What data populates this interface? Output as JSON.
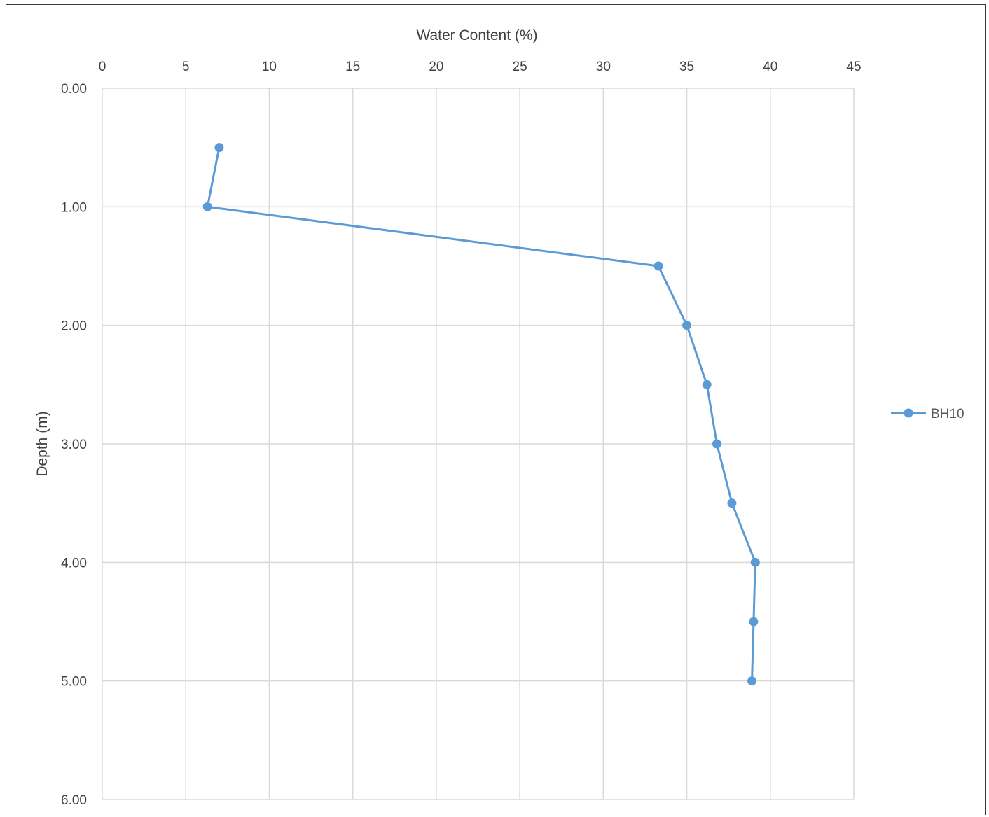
{
  "chart_data": {
    "type": "line",
    "title": "",
    "xlabel": "Water Content (%)",
    "ylabel": "Depth (m)",
    "x_axis_position": "top",
    "y_axis_inverted": true,
    "xlim": [
      0,
      45
    ],
    "ylim": [
      0,
      6
    ],
    "x_ticks": [
      "0",
      "5",
      "10",
      "15",
      "20",
      "25",
      "30",
      "35",
      "40",
      "45"
    ],
    "y_ticks": [
      "0.00",
      "1.00",
      "2.00",
      "3.00",
      "4.00",
      "5.00",
      "6.00"
    ],
    "grid": true,
    "legend_position": "right",
    "series": [
      {
        "name": "BH10",
        "color": "#5b9bd5",
        "marker": "circle",
        "points": [
          {
            "x": 7.0,
            "y": 0.5
          },
          {
            "x": 6.3,
            "y": 1.0
          },
          {
            "x": 33.3,
            "y": 1.5
          },
          {
            "x": 35.0,
            "y": 2.0
          },
          {
            "x": 36.2,
            "y": 2.5
          },
          {
            "x": 36.8,
            "y": 3.0
          },
          {
            "x": 37.7,
            "y": 3.5
          },
          {
            "x": 39.1,
            "y": 4.0
          },
          {
            "x": 39.0,
            "y": 4.5
          },
          {
            "x": 38.9,
            "y": 5.0
          }
        ]
      }
    ]
  }
}
